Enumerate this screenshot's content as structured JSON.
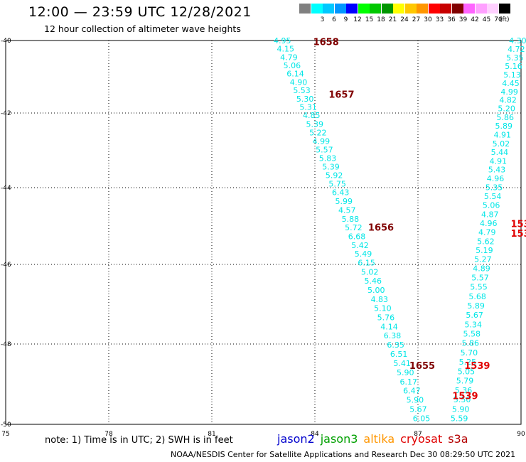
{
  "title": "12:00 — 23:59 UTC 12/28/2021",
  "subtitle": "12 hour collection of altimeter wave heights",
  "legend": {
    "unit": "(ft)",
    "items": [
      {
        "label": "",
        "color": "#808080"
      },
      {
        "label": "3",
        "color": "#00ffff"
      },
      {
        "label": "6",
        "color": "#00c8ff"
      },
      {
        "label": "9",
        "color": "#0096ff"
      },
      {
        "label": "12",
        "color": "#0000ff"
      },
      {
        "label": "15",
        "color": "#00ff00"
      },
      {
        "label": "18",
        "color": "#00c800"
      },
      {
        "label": "21",
        "color": "#009600"
      },
      {
        "label": "24",
        "color": "#ffff00"
      },
      {
        "label": "27",
        "color": "#ffc800"
      },
      {
        "label": "30",
        "color": "#ff9600"
      },
      {
        "label": "33",
        "color": "#ff0000"
      },
      {
        "label": "36",
        "color": "#c80000"
      },
      {
        "label": "39",
        "color": "#800000"
      },
      {
        "label": "42",
        "color": "#ff64ff"
      },
      {
        "label": "45",
        "color": "#ffa0ff"
      },
      {
        "label": "70",
        "color": "#ffd0ff"
      },
      {
        "label": "",
        "color": "#000000"
      }
    ]
  },
  "map": {
    "x_ticks": [
      "75",
      "78",
      "81",
      "84",
      "87",
      "90"
    ],
    "y_ticks": [
      "-40",
      "-42",
      "-44",
      "-46",
      "-48",
      "-50"
    ],
    "colors": {
      "swh": "#00e6e6",
      "jason3_time": "#800000",
      "s3a_time": "#e00000"
    },
    "track_a": {
      "values": [
        "4.95",
        "4.15",
        "4.79",
        "5.06",
        "6.14",
        "4.90",
        "5.53",
        "5.30",
        "5.31",
        "4.85",
        "5.39",
        "5.22",
        "4.99",
        "5.57",
        "5.83",
        "5.39",
        "5.92",
        "5.75",
        "6.43",
        "5.99",
        "4.57",
        "5.88",
        "5.72",
        "6.68",
        "5.42",
        "5.49",
        "6.15",
        "5.02",
        "5.46",
        "5.00",
        "4.83",
        "5.10",
        "5.76",
        "4.14",
        "6.38",
        "6.35",
        "6.51",
        "5.41",
        "5.90",
        "6.17",
        "6.47",
        "5.90",
        "5.67",
        "6.05"
      ],
      "times": [
        {
          "label": "1658",
          "lon": 83.95,
          "lat": -40.05
        },
        {
          "label": "1657",
          "lon": 84.4,
          "lat": -41.5
        },
        {
          "label": "1656",
          "lon": 85.55,
          "lat": -45.05
        },
        {
          "label": "1655",
          "lon": 86.75,
          "lat": -48.55
        }
      ]
    },
    "track_b": {
      "values": [
        "4.30",
        "4.72",
        "5.35",
        "5.16",
        "5.13",
        "4.45",
        "4.99",
        "4.82",
        "5.20",
        "5.86",
        "5.89",
        "4.91",
        "5.02",
        "5.44",
        "4.91",
        "5.43",
        "4.96",
        "5.35",
        "5.54",
        "5.06",
        "4.87",
        "4.96",
        "4.79",
        "5.62",
        "5.19",
        "5.27",
        "4.89",
        "5.57",
        "5.55",
        "5.68",
        "5.89",
        "5.67",
        "5.34",
        "5.58",
        "5.86",
        "5.70",
        "5.25",
        "5.05",
        "5.79",
        "5.36",
        "5.50",
        "5.90",
        "5.59"
      ],
      "times": [
        {
          "label": "153",
          "lon": 89.7,
          "lat": -44.95
        },
        {
          "label": "153",
          "lon": 89.7,
          "lat": -45.2
        },
        {
          "label": "1539",
          "lon": 88.35,
          "lat": -48.55
        },
        {
          "label": "1539",
          "lon": 88.0,
          "lat": -49.3
        }
      ]
    }
  },
  "note": "note: 1) Time is in UTC; 2) SWH is in feet",
  "satellites": [
    {
      "label": "jason2",
      "color": "#0000cc"
    },
    {
      "label": "jason3",
      "color": "#00a000"
    },
    {
      "label": "altika",
      "color": "#ff9600"
    },
    {
      "label": "cryosat",
      "color": "#e00000"
    },
    {
      "label": "s3a",
      "color": "#b40000"
    }
  ],
  "credit": "NOAA/NESDIS Center for Satellite Applications and Research   Dec 30 08:29:50 UTC 2021"
}
